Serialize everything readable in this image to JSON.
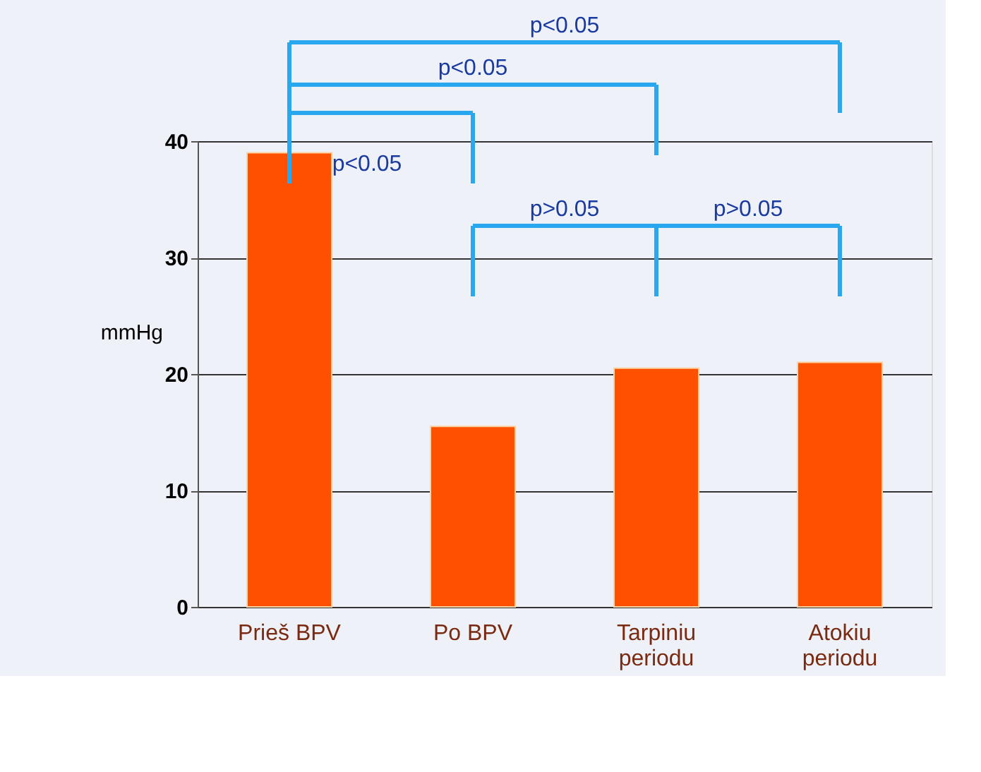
{
  "chart_data": {
    "type": "bar",
    "ylabel": "mmHg",
    "categories": [
      "Prieš BPV",
      "Po BPV",
      "Tarpiniu\nperiodu",
      "Atokiu\nperiodu"
    ],
    "values": [
      39,
      15.5,
      20.5,
      21
    ],
    "color": "#ff5000",
    "ylim": [
      0,
      40
    ],
    "yticks": [
      0,
      10,
      20,
      30,
      40
    ],
    "grid": "y",
    "annotations": [
      "p<0.05",
      "p<0.05",
      "p<0.05",
      "p>0.05",
      "p>0.05"
    ]
  }
}
